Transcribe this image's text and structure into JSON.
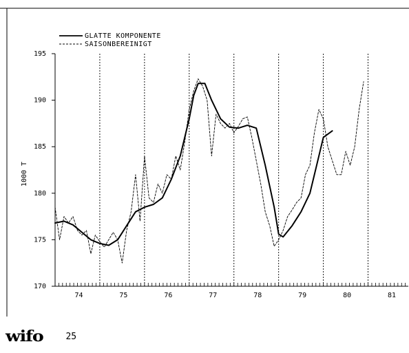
{
  "chart_data": {
    "type": "line",
    "title": "",
    "xlabel": "",
    "ylabel": "1000 T",
    "x_tick_labels": [
      "74",
      "75",
      "76",
      "77",
      "78",
      "79",
      "80",
      "81"
    ],
    "y_tick_labels": [
      "170",
      "175",
      "180",
      "185",
      "190",
      "195"
    ],
    "xlim": [
      1973.5,
      1981.4
    ],
    "ylim": [
      170,
      195
    ],
    "grid": "vertical dotted lines at year boundaries",
    "legend_position": "top-left",
    "series": [
      {
        "name": "GLATTE KOMPONENTE",
        "style": "solid",
        "x": [
          1973.5,
          1973.7,
          1973.9,
          1974.1,
          1974.3,
          1974.5,
          1974.7,
          1974.9,
          1975.1,
          1975.3,
          1975.5,
          1975.7,
          1975.9,
          1976.1,
          1976.3,
          1976.5,
          1976.6,
          1976.7,
          1976.85,
          1977.0,
          1977.2,
          1977.4,
          1977.6,
          1977.8,
          1978.0,
          1978.2,
          1978.4,
          1978.5,
          1978.6,
          1978.8,
          1979.0,
          1979.2,
          1979.35,
          1979.5,
          1979.7
        ],
        "values": [
          176.8,
          177.0,
          176.6,
          175.8,
          175.0,
          174.6,
          174.4,
          175.0,
          176.5,
          178.0,
          178.5,
          178.8,
          179.5,
          181.5,
          184.0,
          188.0,
          190.5,
          191.8,
          191.8,
          190.0,
          188.0,
          187.1,
          187.0,
          187.3,
          187.0,
          183.0,
          178.5,
          175.6,
          175.3,
          176.5,
          178.0,
          180.0,
          183.0,
          186.0,
          186.7
        ]
      },
      {
        "name": "SAISONBEREINIGT",
        "style": "dashed",
        "x": [
          1973.5,
          1973.6,
          1973.7,
          1973.8,
          1973.9,
          1974.0,
          1974.1,
          1974.2,
          1974.3,
          1974.4,
          1974.5,
          1974.6,
          1974.7,
          1974.8,
          1974.9,
          1975.0,
          1975.1,
          1975.2,
          1975.3,
          1975.4,
          1975.5,
          1975.6,
          1975.7,
          1975.8,
          1975.9,
          1976.0,
          1976.1,
          1976.2,
          1976.3,
          1976.4,
          1976.5,
          1976.6,
          1976.7,
          1976.8,
          1976.9,
          1977.0,
          1977.1,
          1977.2,
          1977.3,
          1977.4,
          1977.5,
          1977.6,
          1977.7,
          1977.8,
          1977.9,
          1978.0,
          1978.1,
          1978.2,
          1978.3,
          1978.4,
          1978.5,
          1978.6,
          1978.7,
          1978.8,
          1978.9,
          1979.0,
          1979.1,
          1979.2,
          1979.3,
          1979.4,
          1979.5,
          1979.6,
          1979.7,
          1979.8,
          1979.9,
          1980.0,
          1980.1,
          1980.2,
          1980.3,
          1980.4
        ],
        "values": [
          178.5,
          175.0,
          177.5,
          176.8,
          177.5,
          176.0,
          175.5,
          176.0,
          173.5,
          175.5,
          174.8,
          174.2,
          175.0,
          175.8,
          175.0,
          172.5,
          176.0,
          178.0,
          182.0,
          177.0,
          184.0,
          179.5,
          179.0,
          181.0,
          180.0,
          182.0,
          181.5,
          184.0,
          182.5,
          185.5,
          189.0,
          191.0,
          192.3,
          191.5,
          190.0,
          184.0,
          188.5,
          187.5,
          187.0,
          187.5,
          186.5,
          187.2,
          188.0,
          188.2,
          186.0,
          183.5,
          181.0,
          178.0,
          176.5,
          174.3,
          175.0,
          176.0,
          177.5,
          178.2,
          179.0,
          179.5,
          182.0,
          183.0,
          186.5,
          189.0,
          188.0,
          185.0,
          183.5,
          182.0,
          182.0,
          184.5,
          183.0,
          185.0,
          189.0,
          192.0
        ]
      }
    ]
  },
  "footer": {
    "logo": "wifo",
    "page_number": "25"
  }
}
